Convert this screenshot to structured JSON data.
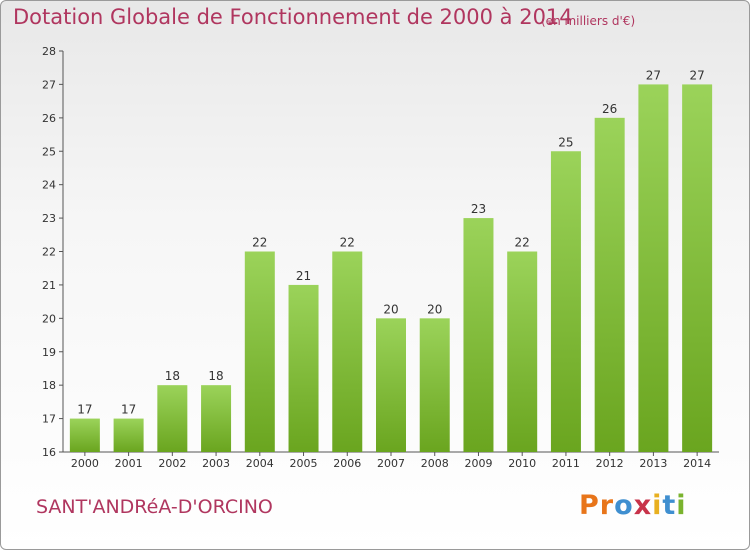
{
  "title": "Dotation Globale de Fonctionnement de 2000 à 2014",
  "unit_note": "(en milliers d'€)",
  "commune": "SANT'ANDRéA-D'ORCINO",
  "logo": {
    "text": "Proxiti",
    "letters": [
      "P",
      "r",
      "o",
      "x",
      "i",
      "t",
      "i"
    ],
    "colors": [
      "#e8751a",
      "#e8751a",
      "#3f8fd0",
      "#c8334a",
      "#e8b020",
      "#3f8fd0",
      "#7ab32e"
    ]
  },
  "colors": {
    "bar_top": "#9bd35a",
    "bar_bottom": "#6aa51f",
    "accent": "#b0365f"
  },
  "chart_data": {
    "type": "bar",
    "title": "Dotation Globale de Fonctionnement de 2000 à 2014",
    "subtitle": "(en milliers d'€)",
    "categories": [
      "2000",
      "2001",
      "2002",
      "2003",
      "2004",
      "2005",
      "2006",
      "2007",
      "2008",
      "2009",
      "2010",
      "2011",
      "2012",
      "2013",
      "2014"
    ],
    "values": [
      17,
      17,
      18,
      18,
      22,
      21,
      22,
      20,
      20,
      23,
      22,
      25,
      26,
      27,
      27
    ],
    "xlabel": "",
    "ylabel": "",
    "ylim": [
      16,
      28
    ],
    "yticks": [
      16,
      17,
      18,
      19,
      20,
      21,
      22,
      23,
      24,
      25,
      26,
      27,
      28
    ],
    "grid": false,
    "legend": "none"
  }
}
